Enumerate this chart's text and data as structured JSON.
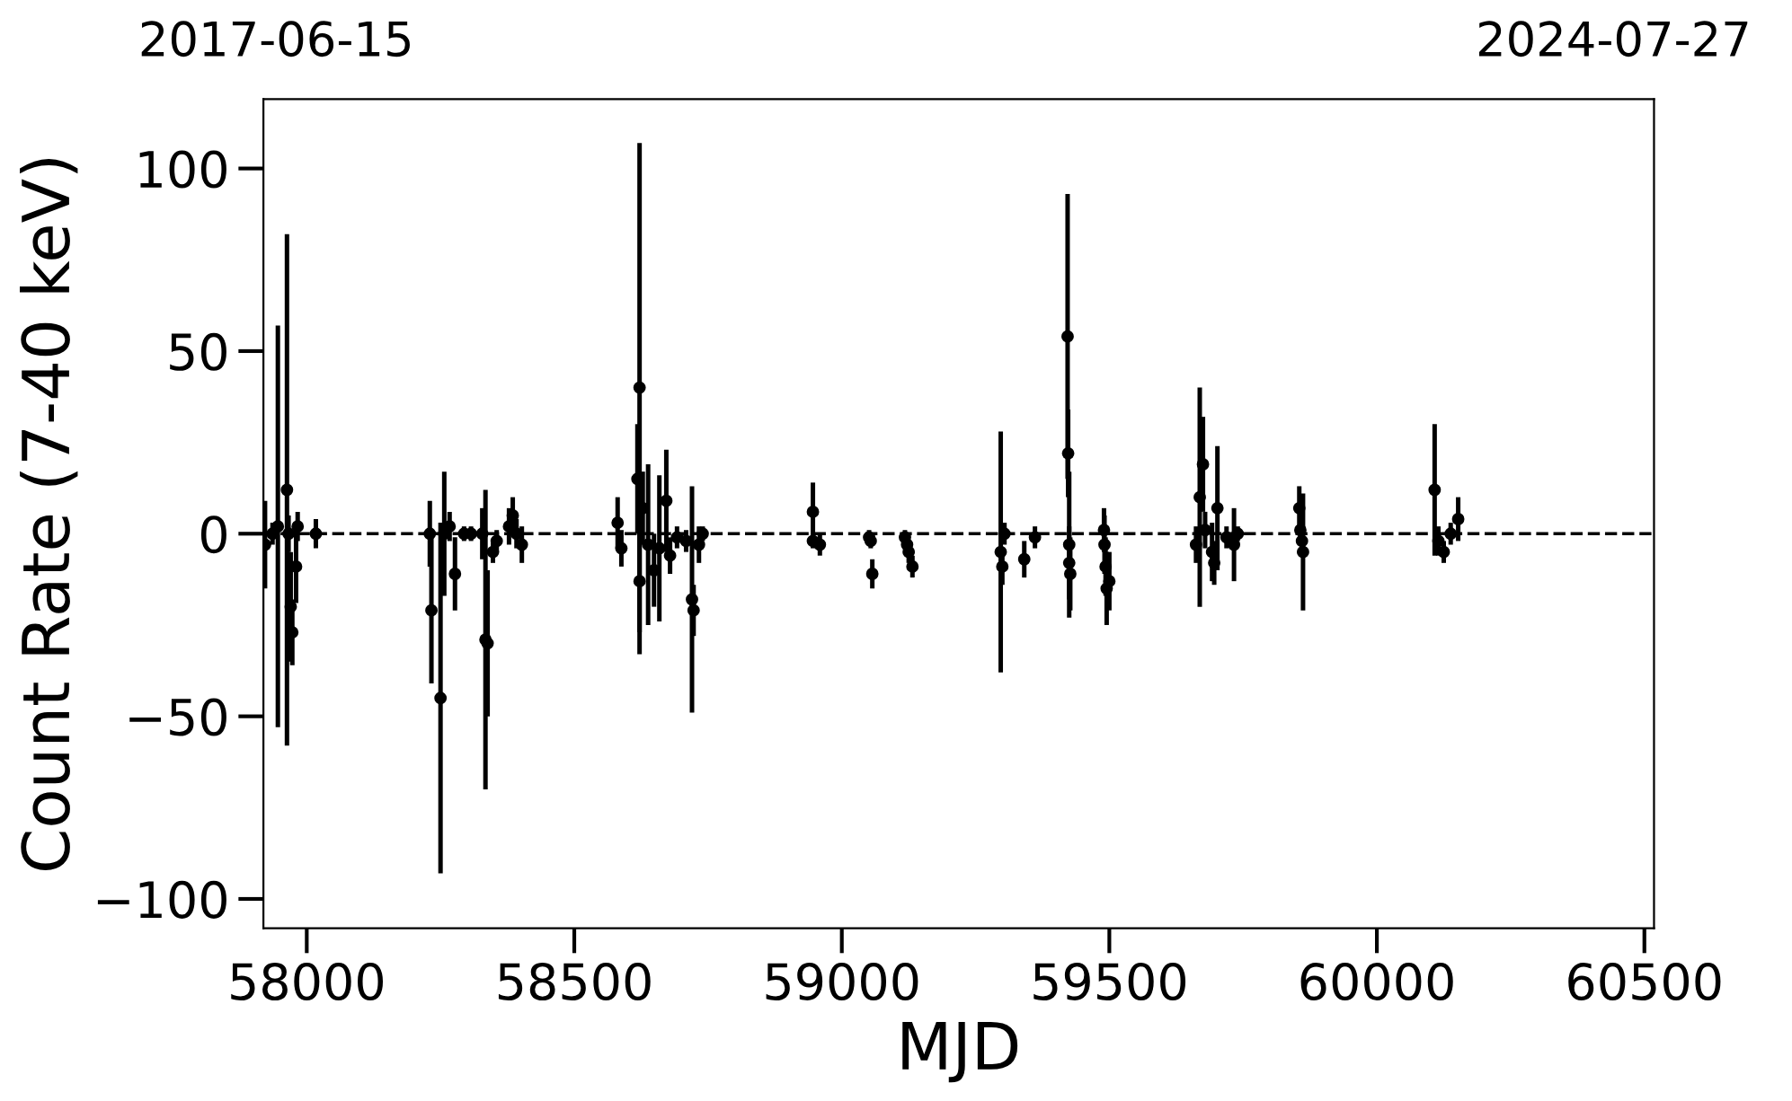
{
  "chart_data": {
    "type": "scatter",
    "xlabel": "MJD",
    "ylabel": "Count Rate (7-40 keV)",
    "annotations": [
      "2017-06-15",
      "2024-07-27"
    ],
    "xlim": [
      57919,
      60518
    ],
    "ylim": [
      -108,
      119
    ],
    "xticks": [
      58000,
      58500,
      59000,
      59500,
      60000,
      60500
    ],
    "yticks": [
      -100,
      -50,
      0,
      50,
      100
    ],
    "grid": false,
    "marker": "circle",
    "ref_lines": [
      {
        "axis": "y",
        "value": 0,
        "color": "#000000",
        "line_style": "dashed"
      }
    ],
    "series": [
      {
        "color": "#000000",
        "x": [
          57922,
          57936,
          57946,
          57963,
          57966,
          57970,
          57973,
          57980,
          57983,
          58017,
          58230,
          58233,
          58250,
          58257,
          58267,
          58277,
          58294,
          58307,
          58328,
          58334,
          58338,
          58348,
          58355,
          58378,
          58385,
          58392,
          58402,
          58581,
          58588,
          58618,
          58622,
          58622,
          58628,
          58638,
          58649,
          58659,
          58672,
          58679,
          58692,
          58709,
          58720,
          58723,
          58733,
          58740,
          58946,
          58946,
          58959,
          59051,
          59054,
          59057,
          59118,
          59122,
          59125,
          59132,
          59297,
          59300,
          59304,
          59341,
          59361,
          59422,
          59423,
          59425,
          59425,
          59427,
          59490,
          59491,
          59493,
          59495,
          59500,
          59662,
          59669,
          59675,
          59679,
          59692,
          59696,
          59702,
          59719,
          59733,
          59740,
          59855,
          59857,
          59860,
          59862,
          60108,
          60115,
          60125,
          60138,
          60152
        ],
        "values": [
          -3,
          0,
          2,
          12,
          0,
          -20,
          -27,
          -9,
          2,
          0,
          0,
          -21,
          -45,
          0,
          2,
          -11,
          0,
          0,
          0,
          -29,
          -30,
          -5,
          -2,
          2,
          5,
          0,
          -3,
          3,
          -4,
          15,
          40,
          -13,
          7,
          -3,
          -10,
          -4,
          9,
          -6,
          -1,
          -2,
          -18,
          -21,
          -3,
          0,
          6,
          -2,
          -3,
          -1,
          -2,
          -11,
          -1,
          -3,
          -5,
          -9,
          -5,
          -9,
          0,
          -7,
          -1,
          54,
          22,
          -3,
          -8,
          -11,
          1,
          -3,
          -9,
          -15,
          -13,
          -3,
          10,
          19,
          1,
          -5,
          -8,
          7,
          -1,
          -3,
          0,
          7,
          1,
          -2,
          -5,
          12,
          -2,
          -5,
          0,
          4
        ],
        "errors": [
          12,
          3,
          55,
          70,
          5,
          15,
          9,
          10,
          4,
          4,
          9,
          20,
          48,
          17,
          4,
          10,
          2,
          2,
          7,
          41,
          20,
          3,
          3,
          5,
          5,
          4,
          5,
          7,
          5,
          15,
          67,
          20,
          10,
          22,
          10,
          20,
          14,
          5,
          3,
          3,
          31,
          7,
          5,
          2,
          8,
          2,
          3,
          2,
          2,
          4,
          2,
          2,
          3,
          3,
          33,
          5,
          3,
          5,
          3,
          39,
          12,
          20,
          10,
          10,
          6,
          8,
          8,
          10,
          8,
          5,
          30,
          13,
          5,
          8,
          6,
          17,
          3,
          10,
          2,
          6,
          3,
          3,
          16,
          18,
          4,
          3,
          3,
          6
        ]
      }
    ]
  }
}
